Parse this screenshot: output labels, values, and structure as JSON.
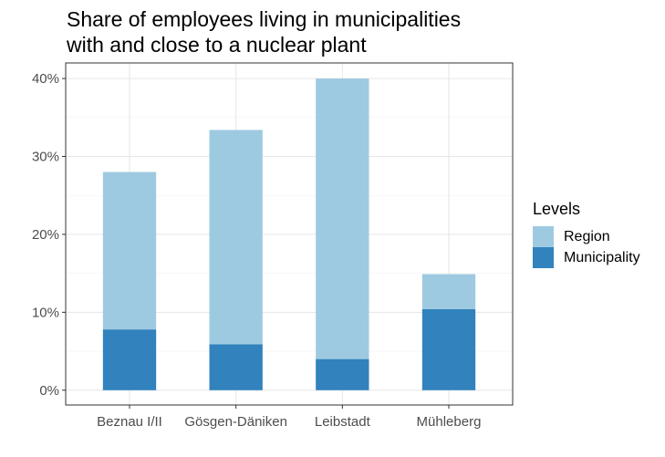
{
  "chart_data": {
    "type": "bar",
    "stacked": true,
    "title_lines": [
      "Share of employees living in municipalities",
      "with and close to a nuclear plant"
    ],
    "xlabel": "",
    "ylabel": "",
    "categories": [
      "Beznau I/II",
      "Gösgen-Däniken",
      "Leibstadt",
      "Mühleberg"
    ],
    "series": [
      {
        "name": "Municipality",
        "color": "#3182bd",
        "values": [
          7.8,
          5.9,
          4.0,
          10.4
        ]
      },
      {
        "name": "Region",
        "color": "#9ecae1",
        "values": [
          20.2,
          27.5,
          36.0,
          4.5
        ]
      }
    ],
    "legend": {
      "title": "Levels",
      "position": "right",
      "items": [
        {
          "label": "Region",
          "color": "#9ecae1"
        },
        {
          "label": "Municipality",
          "color": "#3182bd"
        }
      ]
    },
    "ylim": [
      -1.9,
      42.0
    ],
    "yticks": [
      0,
      10,
      20,
      30,
      40
    ],
    "ytick_labels": [
      "0%",
      "10%",
      "20%",
      "30%",
      "40%"
    ],
    "grid": true
  }
}
